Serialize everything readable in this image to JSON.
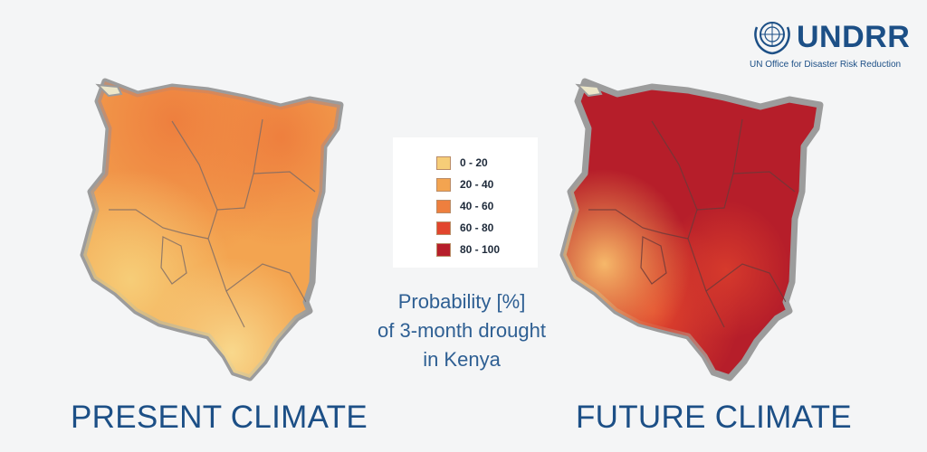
{
  "title_lines": [
    "Probability [%]",
    "of 3-month drought",
    "in Kenya"
  ],
  "captions": {
    "present": "PRESENT CLIMATE",
    "future": "FUTURE CLIMATE"
  },
  "legend": [
    {
      "label": "0 - 20",
      "color": "#f6cd78"
    },
    {
      "label": "20 - 40",
      "color": "#f3a450"
    },
    {
      "label": "40 - 60",
      "color": "#ee7f3e"
    },
    {
      "label": "60 - 80",
      "color": "#e2452d"
    },
    {
      "label": "80 - 100",
      "color": "#b61e2a"
    }
  ],
  "maps": {
    "present": {
      "dominant_class": "20 - 40",
      "colors": [
        "#f6cd78",
        "#f3a450",
        "#ee7f3e"
      ]
    },
    "future": {
      "dominant_class": "80 - 100",
      "colors": [
        "#f3a450",
        "#e2452d",
        "#b61e2a"
      ]
    }
  },
  "logo": {
    "wordmark": "UNDRR",
    "subtitle": "UN Office for Disaster Risk Reduction"
  }
}
